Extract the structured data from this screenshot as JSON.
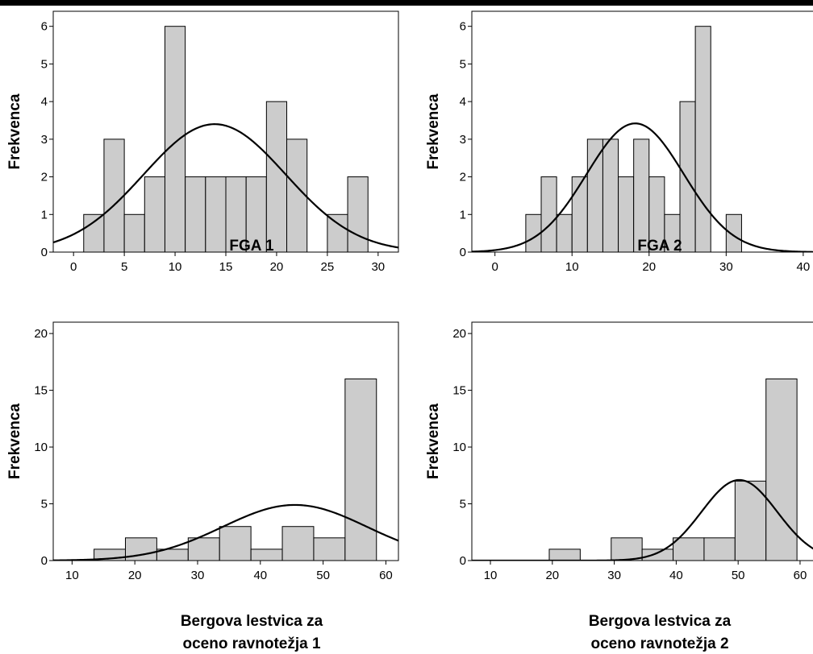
{
  "chart_data": [
    {
      "type": "bar",
      "xlabel": "FGA 1",
      "ylabel": "Frekvenca",
      "xlim": [
        -2,
        32
      ],
      "ylim": [
        0,
        6.4
      ],
      "xticks": [
        0,
        5,
        10,
        15,
        20,
        25,
        30
      ],
      "yticks": [
        0,
        1,
        2,
        3,
        4,
        5,
        6
      ],
      "bins": [
        [
          1,
          3,
          1
        ],
        [
          3,
          5,
          3
        ],
        [
          5,
          7,
          1
        ],
        [
          7,
          9,
          2
        ],
        [
          9,
          11,
          6
        ],
        [
          11,
          13,
          2
        ],
        [
          13,
          15,
          2
        ],
        [
          15,
          17,
          2
        ],
        [
          17,
          19,
          2
        ],
        [
          19,
          21,
          4
        ],
        [
          21,
          23,
          3
        ],
        [
          25,
          27,
          1
        ],
        [
          27,
          29,
          2
        ]
      ],
      "normal_curve": {
        "mean": 13.9,
        "sd": 7.0,
        "peak": 3.4
      }
    },
    {
      "type": "bar",
      "xlabel": "FGA 2",
      "ylabel": "Frekvenca",
      "xlim": [
        -3,
        42
      ],
      "ylim": [
        0,
        6.4
      ],
      "xticks": [
        0,
        10,
        20,
        30,
        40
      ],
      "yticks": [
        0,
        1,
        2,
        3,
        4,
        5,
        6
      ],
      "bins": [
        [
          4,
          6,
          1
        ],
        [
          6,
          8,
          2
        ],
        [
          8,
          10,
          1
        ],
        [
          10,
          12,
          2
        ],
        [
          12,
          14,
          3
        ],
        [
          14,
          16,
          3
        ],
        [
          16,
          18,
          2
        ],
        [
          18,
          20,
          3
        ],
        [
          20,
          22,
          2
        ],
        [
          22,
          24,
          1
        ],
        [
          24,
          26,
          4
        ],
        [
          26,
          28,
          6
        ],
        [
          30,
          32,
          1
        ]
      ],
      "normal_curve": {
        "mean": 18.2,
        "sd": 6.3,
        "peak": 3.42
      }
    },
    {
      "type": "bar",
      "xlabel": "Bergova lestvica za oceno ravnotežja 1",
      "xlabel_lines": [
        "Bergova lestvica za",
        "oceno ravnotežja 1"
      ],
      "ylabel": "Frekvenca",
      "xlim": [
        7,
        62
      ],
      "ylim": [
        0,
        21
      ],
      "xticks": [
        10,
        20,
        30,
        40,
        50,
        60
      ],
      "yticks": [
        0,
        5,
        10,
        15,
        20
      ],
      "bins": [
        [
          13.5,
          18.5,
          1
        ],
        [
          18.5,
          23.5,
          2
        ],
        [
          23.5,
          28.5,
          1
        ],
        [
          28.5,
          33.5,
          2
        ],
        [
          33.5,
          38.5,
          3
        ],
        [
          38.5,
          43.5,
          1
        ],
        [
          43.5,
          48.5,
          3
        ],
        [
          48.5,
          53.5,
          2
        ],
        [
          53.5,
          58.5,
          16
        ]
      ],
      "normal_curve": {
        "mean": 45.5,
        "sd": 11.5,
        "peak": 4.9
      }
    },
    {
      "type": "bar",
      "xlabel": "Bergova lestvica za oceno ravnotežja 2",
      "xlabel_lines": [
        "Bergova lestvica za",
        "oceno ravnotežja 2"
      ],
      "ylabel": "Frekvenca",
      "xlim": [
        7,
        63
      ],
      "ylim": [
        0,
        21
      ],
      "xticks": [
        10,
        20,
        30,
        40,
        50,
        60
      ],
      "yticks": [
        0,
        5,
        10,
        15,
        20
      ],
      "bins": [
        [
          19.5,
          24.5,
          1
        ],
        [
          29.5,
          34.5,
          2
        ],
        [
          34.5,
          39.5,
          1
        ],
        [
          39.5,
          44.5,
          2
        ],
        [
          44.5,
          49.5,
          2
        ],
        [
          49.5,
          54.5,
          7
        ],
        [
          54.5,
          59.5,
          16
        ]
      ],
      "normal_curve": {
        "mean": 50.2,
        "sd": 6.1,
        "peak": 7.1
      }
    }
  ]
}
